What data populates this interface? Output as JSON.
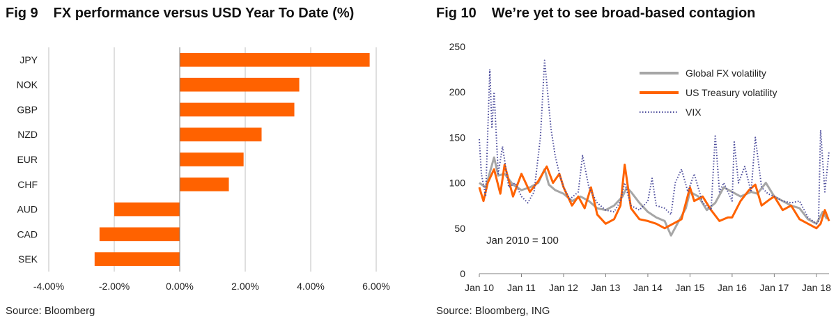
{
  "fig9": {
    "number": "Fig 9",
    "title": "FX performance versus USD Year To Date (%)",
    "source": "Source: Bloomberg"
  },
  "fig10": {
    "number": "Fig 10",
    "title": "We’re yet to see broad-based contagion",
    "source": "Source: Bloomberg, ING",
    "annotation": "Jan 2010 = 100"
  },
  "colors": {
    "orange": "#ff6200",
    "grey": "#a6a6a6",
    "navy": "#4b4b9b",
    "grid": "#bfbfbf"
  },
  "chart_data": [
    {
      "type": "bar",
      "orientation": "horizontal",
      "categories": [
        "JPY",
        "NOK",
        "GBP",
        "NZD",
        "EUR",
        "CHF",
        "AUD",
        "CAD",
        "SEK"
      ],
      "values": [
        5.8,
        3.65,
        3.5,
        2.5,
        1.95,
        1.5,
        -2.0,
        -2.45,
        -2.6
      ],
      "xlim": [
        -4,
        6
      ],
      "xticks": [
        -4,
        -2,
        0,
        2,
        4,
        6
      ],
      "xtick_labels": [
        "-4.00%",
        "-2.00%",
        "0.00%",
        "2.00%",
        "4.00%",
        "6.00%"
      ],
      "grid": "vertical",
      "color": "#ff6200"
    },
    {
      "type": "line",
      "ylim": [
        0,
        250
      ],
      "yticks": [
        0,
        50,
        100,
        150,
        200,
        250
      ],
      "xlim": [
        2010.0,
        2018.3
      ],
      "xticks": [
        2010,
        2011,
        2012,
        2013,
        2014,
        2015,
        2016,
        2017,
        2018
      ],
      "xtick_labels": [
        "Jan 10",
        "Jan 11",
        "Jan 12",
        "Jan 13",
        "Jan 14",
        "Jan 15",
        "Jan 16",
        "Jan 17",
        "Jan 18"
      ],
      "legend_position": "top-right",
      "series": [
        {
          "name": "Global FX volatility",
          "color": "#a6a6a6",
          "style": "solid",
          "x": [
            2010.0,
            2010.15,
            2010.35,
            2010.45,
            2010.6,
            2010.8,
            2011.0,
            2011.2,
            2011.4,
            2011.55,
            2011.65,
            2011.8,
            2012.0,
            2012.2,
            2012.4,
            2012.6,
            2012.8,
            2013.0,
            2013.2,
            2013.4,
            2013.5,
            2013.6,
            2013.8,
            2014.0,
            2014.2,
            2014.4,
            2014.55,
            2014.7,
            2014.9,
            2015.0,
            2015.2,
            2015.4,
            2015.6,
            2015.8,
            2016.0,
            2016.2,
            2016.45,
            2016.6,
            2016.8,
            2017.0,
            2017.2,
            2017.4,
            2017.6,
            2017.8,
            2018.0,
            2018.15,
            2018.25
          ],
          "y": [
            100,
            95,
            128,
            108,
            110,
            98,
            92,
            95,
            100,
            115,
            98,
            92,
            88,
            80,
            85,
            80,
            72,
            70,
            75,
            85,
            95,
            90,
            78,
            68,
            62,
            58,
            42,
            55,
            72,
            90,
            85,
            70,
            78,
            95,
            90,
            85,
            90,
            88,
            100,
            85,
            80,
            75,
            72,
            60,
            55,
            68,
            60
          ]
        },
        {
          "name": "US Treasury volatility",
          "color": "#ff6200",
          "style": "solid",
          "x": [
            2010.0,
            2010.1,
            2010.2,
            2010.35,
            2010.5,
            2010.6,
            2010.8,
            2011.0,
            2011.2,
            2011.4,
            2011.6,
            2011.75,
            2011.9,
            2012.0,
            2012.2,
            2012.35,
            2012.5,
            2012.65,
            2012.8,
            2013.0,
            2013.2,
            2013.35,
            2013.45,
            2013.6,
            2013.8,
            2014.0,
            2014.2,
            2014.4,
            2014.6,
            2014.8,
            2015.0,
            2015.1,
            2015.3,
            2015.5,
            2015.7,
            2015.9,
            2016.0,
            2016.2,
            2016.4,
            2016.55,
            2016.7,
            2016.9,
            2017.0,
            2017.2,
            2017.4,
            2017.6,
            2017.8,
            2018.0,
            2018.1,
            2018.2,
            2018.3
          ],
          "y": [
            95,
            80,
            100,
            115,
            88,
            120,
            85,
            110,
            90,
            102,
            118,
            100,
            110,
            95,
            75,
            85,
            72,
            95,
            65,
            55,
            60,
            75,
            120,
            72,
            60,
            58,
            55,
            50,
            55,
            60,
            95,
            80,
            85,
            70,
            58,
            62,
            62,
            80,
            92,
            98,
            75,
            82,
            85,
            70,
            75,
            60,
            55,
            50,
            55,
            70,
            58
          ]
        },
        {
          "name": "VIX",
          "color": "#4b4b9b",
          "style": "dotted",
          "x": [
            2010.0,
            2010.05,
            2010.15,
            2010.25,
            2010.3,
            2010.35,
            2010.45,
            2010.55,
            2010.7,
            2010.85,
            2011.0,
            2011.15,
            2011.3,
            2011.45,
            2011.55,
            2011.6,
            2011.7,
            2011.8,
            2011.9,
            2012.0,
            2012.15,
            2012.35,
            2012.45,
            2012.6,
            2012.8,
            2013.0,
            2013.2,
            2013.35,
            2013.45,
            2013.6,
            2013.8,
            2014.0,
            2014.1,
            2014.2,
            2014.4,
            2014.55,
            2014.65,
            2014.8,
            2014.95,
            2015.1,
            2015.3,
            2015.5,
            2015.6,
            2015.7,
            2015.8,
            2016.0,
            2016.05,
            2016.15,
            2016.3,
            2016.45,
            2016.55,
            2016.7,
            2016.85,
            2017.0,
            2017.2,
            2017.4,
            2017.6,
            2017.8,
            2018.0,
            2018.05,
            2018.1,
            2018.2,
            2018.3
          ],
          "y": [
            148,
            110,
            85,
            225,
            160,
            200,
            110,
            140,
            95,
            100,
            85,
            78,
            90,
            150,
            235,
            210,
            160,
            130,
            110,
            95,
            82,
            90,
            130,
            95,
            78,
            70,
            68,
            80,
            100,
            75,
            70,
            80,
            105,
            75,
            72,
            65,
            100,
            115,
            90,
            110,
            78,
            70,
            153,
            90,
            100,
            80,
            145,
            100,
            118,
            90,
            150,
            95,
            88,
            85,
            80,
            78,
            80,
            62,
            55,
            58,
            158,
            90,
            135
          ]
        }
      ]
    }
  ]
}
